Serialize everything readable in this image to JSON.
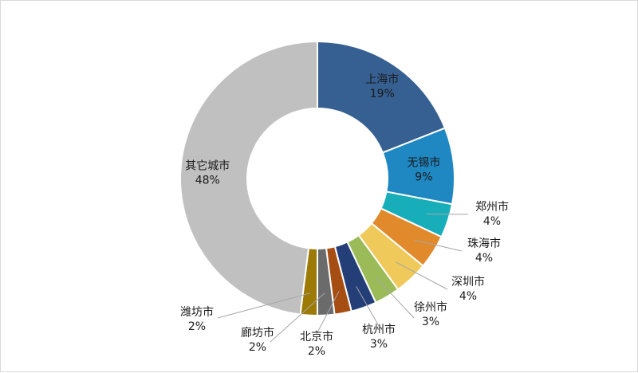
{
  "chart_data": {
    "type": "pie",
    "style": "donut",
    "title": "",
    "slices": [
      {
        "label": "上海市",
        "value": 19,
        "pct_label": "19%",
        "color": "#366092"
      },
      {
        "label": "无锡市",
        "value": 9,
        "pct_label": "9%",
        "color": "#1f87c2"
      },
      {
        "label": "郑州市",
        "value": 4,
        "pct_label": "4%",
        "color": "#17aeb9"
      },
      {
        "label": "珠海市",
        "value": 4,
        "pct_label": "4%",
        "color": "#e08a2c"
      },
      {
        "label": "深圳市",
        "value": 4,
        "pct_label": "4%",
        "color": "#f0c95b"
      },
      {
        "label": "徐州市",
        "value": 3,
        "pct_label": "3%",
        "color": "#9bbb59"
      },
      {
        "label": "杭州市",
        "value": 3,
        "pct_label": "3%",
        "color": "#243f78"
      },
      {
        "label": "北京市",
        "value": 2,
        "pct_label": "2%",
        "color": "#a64d13"
      },
      {
        "label": "廊坊市",
        "value": 2,
        "pct_label": "2%",
        "color": "#6b6b6b"
      },
      {
        "label": "潍坊市",
        "value": 2,
        "pct_label": "2%",
        "color": "#9c7a05"
      },
      {
        "label": "其它城市",
        "value": 48,
        "pct_label": "48%",
        "color": "#c0c0c0"
      }
    ],
    "legend": "none"
  }
}
